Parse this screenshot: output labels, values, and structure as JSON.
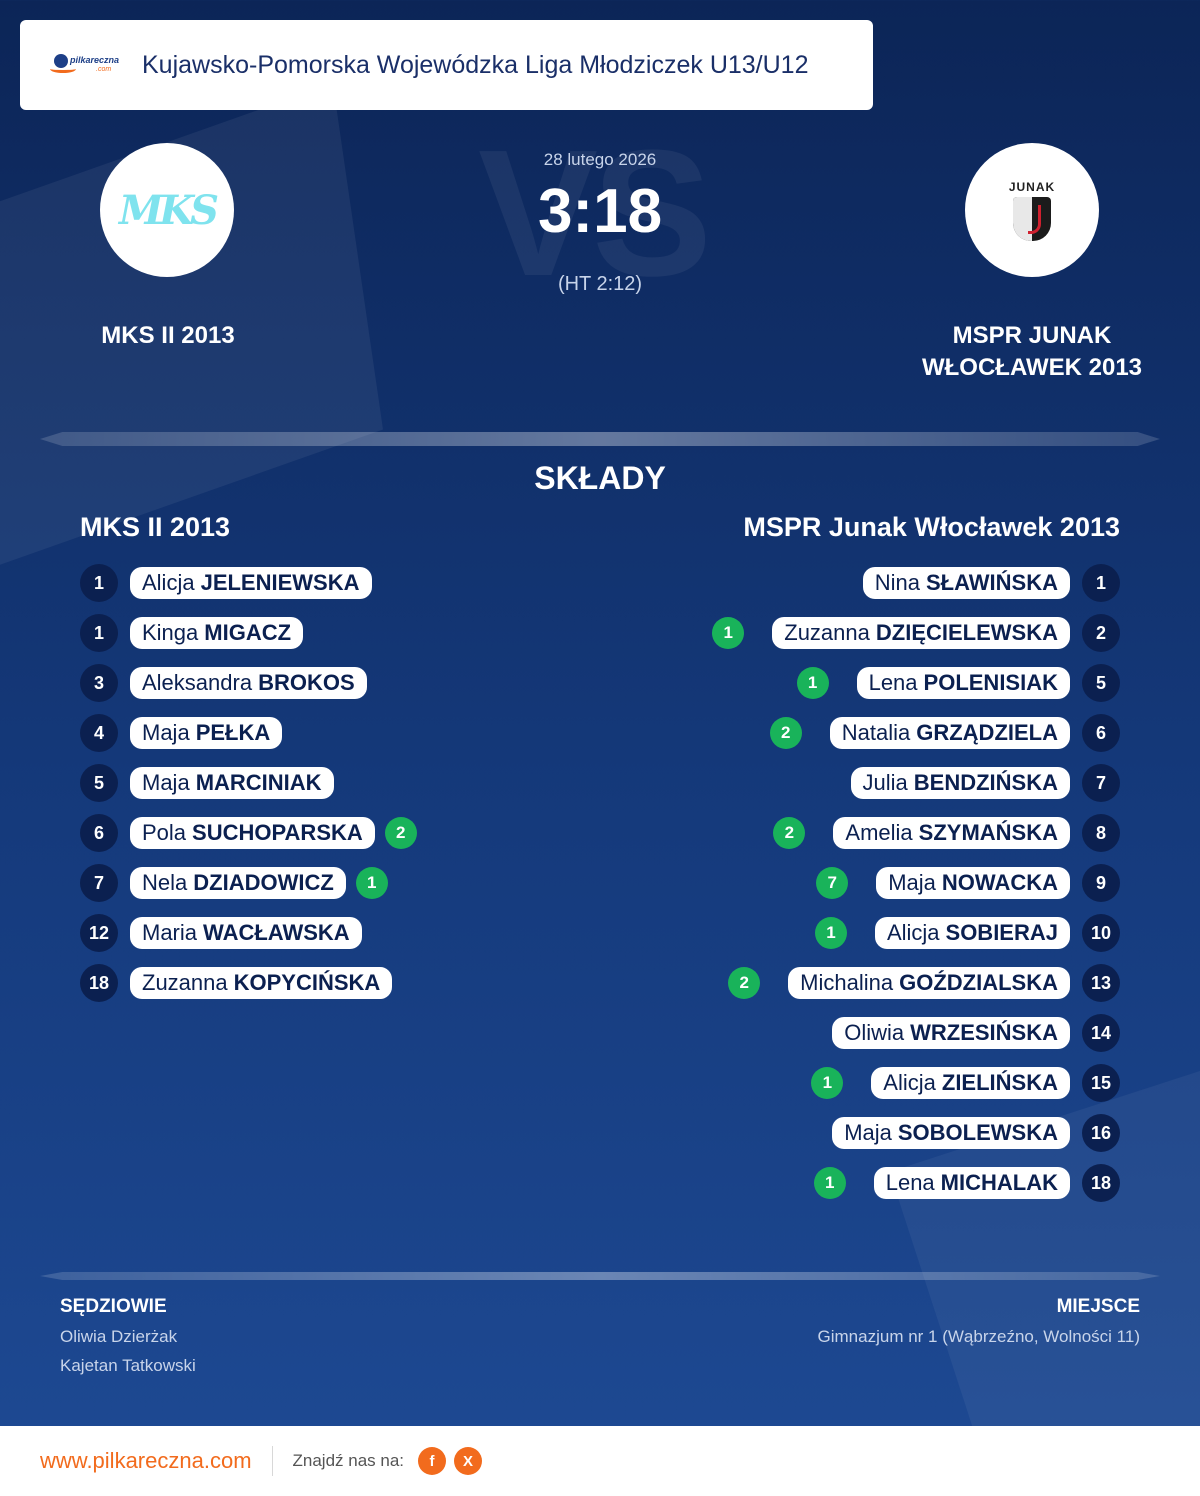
{
  "header": {
    "logo_text": "pilkareczna",
    "logo_subtext": ".com",
    "league": "Kujawsko-Pomorska Wojewódzka Liga Młodziczek U13/U12"
  },
  "background": {
    "vs": "VS"
  },
  "match": {
    "date": "28 lutego 2026",
    "score": "3:18",
    "halftime": "(HT 2:12)",
    "home_name": "MKS II 2013",
    "away_name_line1": "MSPR JUNAK",
    "away_name_line2": "WŁOCŁAWEK 2013",
    "home_logo_text": "MKS",
    "away_logo_text": "JUNAK"
  },
  "lineups": {
    "title": "SKŁADY",
    "home_title": "MKS II 2013",
    "away_title": "MSPR Junak Włocławek 2013",
    "home": [
      {
        "num": "1",
        "first": "Alicja",
        "last": "JELENIEWSKA",
        "goals": ""
      },
      {
        "num": "1",
        "first": "Kinga",
        "last": "MIGACZ",
        "goals": ""
      },
      {
        "num": "3",
        "first": "Aleksandra",
        "last": "BROKOS",
        "goals": ""
      },
      {
        "num": "4",
        "first": "Maja",
        "last": "PEŁKA",
        "goals": ""
      },
      {
        "num": "5",
        "first": "Maja",
        "last": "MARCINIAK",
        "goals": ""
      },
      {
        "num": "6",
        "first": "Pola",
        "last": "SUCHOPARSKA",
        "goals": "2"
      },
      {
        "num": "7",
        "first": "Nela",
        "last": "DZIADOWICZ",
        "goals": "1"
      },
      {
        "num": "12",
        "first": "Maria",
        "last": "WACŁAWSKA",
        "goals": ""
      },
      {
        "num": "18",
        "first": "Zuzanna",
        "last": "KOPYCIŃSKA",
        "goals": ""
      }
    ],
    "away": [
      {
        "num": "1",
        "first": "Nina",
        "last": "SŁAWIŃSKA",
        "goals": ""
      },
      {
        "num": "2",
        "first": "Zuzanna",
        "last": "DZIĘCIELEWSKA",
        "goals": "1"
      },
      {
        "num": "5",
        "first": "Lena",
        "last": "POLENISIAK",
        "goals": "1"
      },
      {
        "num": "6",
        "first": "Natalia",
        "last": "GRZĄDZIELA",
        "goals": "2"
      },
      {
        "num": "7",
        "first": "Julia",
        "last": "BENDZIŃSKA",
        "goals": ""
      },
      {
        "num": "8",
        "first": "Amelia",
        "last": "SZYMAŃSKA",
        "goals": "2"
      },
      {
        "num": "9",
        "first": "Maja",
        "last": "NOWACKA",
        "goals": "7"
      },
      {
        "num": "10",
        "first": "Alicja",
        "last": "SOBIERAJ",
        "goals": "1"
      },
      {
        "num": "13",
        "first": "Michalina",
        "last": "GOŹDZIALSKA",
        "goals": "2"
      },
      {
        "num": "14",
        "first": "Oliwia",
        "last": "WRZESIŃSKA",
        "goals": ""
      },
      {
        "num": "15",
        "first": "Alicja",
        "last": "ZIELIŃSKA",
        "goals": "1"
      },
      {
        "num": "16",
        "first": "Maja",
        "last": "SOBOLEWSKA",
        "goals": ""
      },
      {
        "num": "18",
        "first": "Lena",
        "last": "MICHALAK",
        "goals": "1"
      }
    ]
  },
  "officials": {
    "referees_title": "SĘDZIOWIE",
    "referee1": "Oliwia Dzierżak",
    "referee2": "Kajetan Tatkowski",
    "venue_title": "MIEJSCE",
    "venue": "Gimnazjum nr 1 (Wąbrzeźno, Wolności 11)"
  },
  "footer": {
    "site": "www.pilkareczna.com",
    "find_us": "Znajdź nas na:",
    "facebook": "f",
    "x": "X"
  },
  "colors": {
    "accent": "#f26b1d",
    "goal_badge": "#19b35a",
    "navy": "#0b2050"
  },
  "icons": {
    "facebook": "facebook-icon",
    "x": "x-icon"
  }
}
